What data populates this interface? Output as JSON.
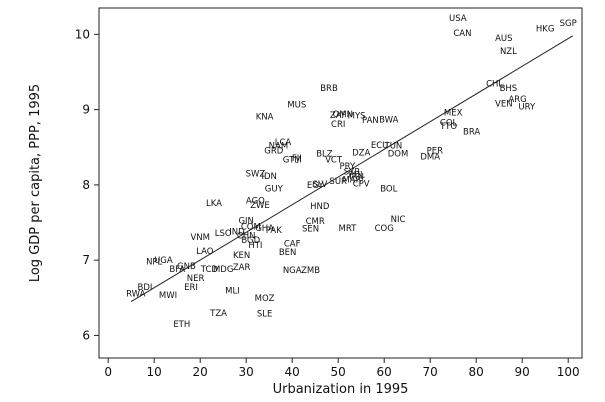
{
  "chart_data": {
    "type": "scatter",
    "xlabel": "Urbanization in 1995",
    "ylabel": "Log GDP per capita, PPP, 1995",
    "xlim": [
      -2,
      103
    ],
    "ylim": [
      5.7,
      10.35
    ],
    "xticks": [
      0,
      10,
      20,
      30,
      40,
      50,
      60,
      70,
      80,
      90,
      100
    ],
    "yticks": [
      6,
      7,
      8,
      9,
      10
    ],
    "grid": false,
    "legend": "none",
    "fit_line": {
      "x": [
        5,
        101
      ],
      "y": [
        6.45,
        9.98
      ]
    },
    "points": [
      {
        "label": "USA",
        "x": 76,
        "y": 10.22
      },
      {
        "label": "CAN",
        "x": 77,
        "y": 10.02
      },
      {
        "label": "SGP",
        "x": 100,
        "y": 10.15
      },
      {
        "label": "HKG",
        "x": 95,
        "y": 10.08
      },
      {
        "label": "AUS",
        "x": 86,
        "y": 9.95
      },
      {
        "label": "NZL",
        "x": 87,
        "y": 9.78
      },
      {
        "label": "CHL",
        "x": 84,
        "y": 9.35
      },
      {
        "label": "BHS",
        "x": 87,
        "y": 9.29
      },
      {
        "label": "ARG",
        "x": 89,
        "y": 9.14
      },
      {
        "label": "VEN",
        "x": 86,
        "y": 9.08
      },
      {
        "label": "URY",
        "x": 91,
        "y": 9.04
      },
      {
        "label": "BRB",
        "x": 48,
        "y": 9.29
      },
      {
        "label": "MUS",
        "x": 41,
        "y": 9.07
      },
      {
        "label": "KNA",
        "x": 34,
        "y": 8.91
      },
      {
        "label": "ZAF",
        "x": 50,
        "y": 8.93
      },
      {
        "label": "OMN",
        "x": 51,
        "y": 8.94
      },
      {
        "label": "MYS",
        "x": 54,
        "y": 8.92
      },
      {
        "label": "CRI",
        "x": 50,
        "y": 8.81
      },
      {
        "label": "PAN",
        "x": 57,
        "y": 8.86
      },
      {
        "label": "BWA",
        "x": 61,
        "y": 8.87
      },
      {
        "label": "MEX",
        "x": 75,
        "y": 8.96
      },
      {
        "label": "COL",
        "x": 74,
        "y": 8.83
      },
      {
        "label": "TTO",
        "x": 74,
        "y": 8.78
      },
      {
        "label": "BRA",
        "x": 79,
        "y": 8.71
      },
      {
        "label": "LCA",
        "x": 38,
        "y": 8.57
      },
      {
        "label": "NAM",
        "x": 37,
        "y": 8.52
      },
      {
        "label": "GRD",
        "x": 36,
        "y": 8.46
      },
      {
        "label": "GTM",
        "x": 40,
        "y": 8.34
      },
      {
        "label": "FJI",
        "x": 41,
        "y": 8.36
      },
      {
        "label": "BLZ",
        "x": 47,
        "y": 8.42
      },
      {
        "label": "VCT",
        "x": 49,
        "y": 8.34
      },
      {
        "label": "DZA",
        "x": 55,
        "y": 8.43
      },
      {
        "label": "ECU",
        "x": 59,
        "y": 8.53
      },
      {
        "label": "TUN",
        "x": 62,
        "y": 8.52
      },
      {
        "label": "DOM",
        "x": 63,
        "y": 8.42
      },
      {
        "label": "PER",
        "x": 71,
        "y": 8.46
      },
      {
        "label": "DMA",
        "x": 70,
        "y": 8.38
      },
      {
        "label": "PRY",
        "x": 52,
        "y": 8.25
      },
      {
        "label": "SYR",
        "x": 53,
        "y": 8.18
      },
      {
        "label": "PHL",
        "x": 54,
        "y": 8.14
      },
      {
        "label": "IRN",
        "x": 54,
        "y": 8.11
      },
      {
        "label": "MAR",
        "x": 53,
        "y": 8.07
      },
      {
        "label": "SLV",
        "x": 46,
        "y": 8.01
      },
      {
        "label": "EGY",
        "x": 45,
        "y": 8.0
      },
      {
        "label": "SUR",
        "x": 50,
        "y": 8.05
      },
      {
        "label": "CPV",
        "x": 55,
        "y": 8.02
      },
      {
        "label": "SWZ",
        "x": 32,
        "y": 8.15
      },
      {
        "label": "IDN",
        "x": 35,
        "y": 8.12
      },
      {
        "label": "GUY",
        "x": 36,
        "y": 7.95
      },
      {
        "label": "BOL",
        "x": 61,
        "y": 7.95
      },
      {
        "label": "LKA",
        "x": 23,
        "y": 7.76
      },
      {
        "label": "AGO",
        "x": 32,
        "y": 7.79
      },
      {
        "label": "ZWE",
        "x": 33,
        "y": 7.73
      },
      {
        "label": "HND",
        "x": 46,
        "y": 7.72
      },
      {
        "label": "NIC",
        "x": 63,
        "y": 7.55
      },
      {
        "label": "COG",
        "x": 60,
        "y": 7.43
      },
      {
        "label": "MRT",
        "x": 52,
        "y": 7.43
      },
      {
        "label": "CMR",
        "x": 45,
        "y": 7.52
      },
      {
        "label": "SEN",
        "x": 44,
        "y": 7.42
      },
      {
        "label": "GIN",
        "x": 30,
        "y": 7.53
      },
      {
        "label": "COM",
        "x": 31,
        "y": 7.45
      },
      {
        "label": "GHA",
        "x": 34,
        "y": 7.43
      },
      {
        "label": "PAK",
        "x": 36,
        "y": 7.4
      },
      {
        "label": "IND",
        "x": 28,
        "y": 7.38
      },
      {
        "label": "LSO",
        "x": 25,
        "y": 7.36
      },
      {
        "label": "VNM",
        "x": 20,
        "y": 7.31
      },
      {
        "label": "CHN",
        "x": 30,
        "y": 7.33
      },
      {
        "label": "BGD",
        "x": 31,
        "y": 7.27
      },
      {
        "label": "HTI",
        "x": 32,
        "y": 7.2
      },
      {
        "label": "CAF",
        "x": 40,
        "y": 7.22
      },
      {
        "label": "BEN",
        "x": 39,
        "y": 7.11
      },
      {
        "label": "LAO",
        "x": 21,
        "y": 7.12
      },
      {
        "label": "KEN",
        "x": 29,
        "y": 7.07
      },
      {
        "label": "ZAR",
        "x": 29,
        "y": 6.91
      },
      {
        "label": "MDG",
        "x": 25,
        "y": 6.88
      },
      {
        "label": "TCD",
        "x": 22,
        "y": 6.88
      },
      {
        "label": "NGA",
        "x": 40,
        "y": 6.87
      },
      {
        "label": "ZMB",
        "x": 44,
        "y": 6.87
      },
      {
        "label": "NPL",
        "x": 10,
        "y": 6.98
      },
      {
        "label": "UGA",
        "x": 12,
        "y": 7.0
      },
      {
        "label": "BFA",
        "x": 15,
        "y": 6.88
      },
      {
        "label": "BDI",
        "x": 8,
        "y": 6.64
      },
      {
        "label": "GNB",
        "x": 17,
        "y": 6.92
      },
      {
        "label": "NER",
        "x": 19,
        "y": 6.76
      },
      {
        "label": "RWA",
        "x": 6,
        "y": 6.56
      },
      {
        "label": "MWI",
        "x": 13,
        "y": 6.54
      },
      {
        "label": "ERI",
        "x": 18,
        "y": 6.64
      },
      {
        "label": "MLI",
        "x": 27,
        "y": 6.6
      },
      {
        "label": "MOZ",
        "x": 34,
        "y": 6.5
      },
      {
        "label": "TZA",
        "x": 24,
        "y": 6.3
      },
      {
        "label": "SLE",
        "x": 34,
        "y": 6.29
      },
      {
        "label": "ETH",
        "x": 16,
        "y": 6.15
      }
    ]
  }
}
